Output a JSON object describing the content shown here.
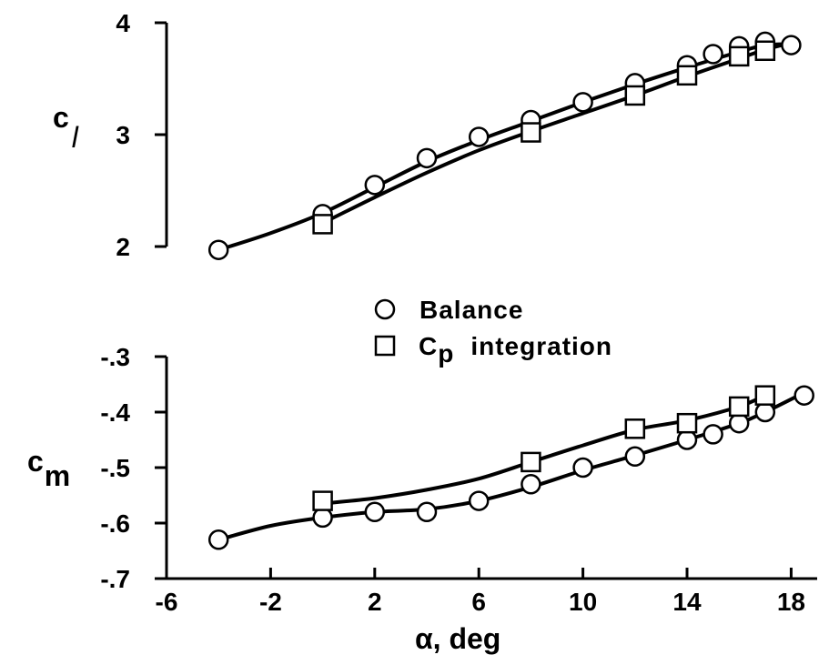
{
  "chart_data": [
    {
      "type": "line",
      "id": "cl",
      "ylabel": "c",
      "ylabel_sub": "l",
      "yticks": [
        "2",
        "3",
        "4"
      ],
      "ylim": [
        2,
        4
      ],
      "xlim": [
        -6,
        19
      ],
      "series": [
        {
          "name": "Balance",
          "marker": "circle",
          "points": [
            [
              -4,
              1.97
            ],
            [
              0,
              2.29
            ],
            [
              2,
              2.55
            ],
            [
              4,
              2.79
            ],
            [
              6,
              2.98
            ],
            [
              8,
              3.13
            ],
            [
              10,
              3.29
            ],
            [
              12,
              3.46
            ],
            [
              14,
              3.62
            ],
            [
              15,
              3.72
            ],
            [
              16,
              3.79
            ],
            [
              17,
              3.83
            ],
            [
              18,
              3.8
            ]
          ],
          "curve": [
            [
              -4,
              1.97
            ],
            [
              -2,
              2.12
            ],
            [
              0,
              2.3
            ],
            [
              2,
              2.53
            ],
            [
              4,
              2.76
            ],
            [
              6,
              2.95
            ],
            [
              8,
              3.12
            ],
            [
              10,
              3.29
            ],
            [
              12,
              3.45
            ],
            [
              14,
              3.6
            ],
            [
              16,
              3.74
            ],
            [
              17,
              3.8
            ],
            [
              18,
              3.81
            ]
          ]
        },
        {
          "name": "C_p integration",
          "marker": "square",
          "points": [
            [
              0,
              2.2
            ],
            [
              8,
              3.02
            ],
            [
              12,
              3.35
            ],
            [
              14,
              3.53
            ],
            [
              16,
              3.7
            ],
            [
              17,
              3.75
            ]
          ],
          "curve": [
            [
              0,
              2.21
            ],
            [
              2,
              2.44
            ],
            [
              4,
              2.66
            ],
            [
              6,
              2.86
            ],
            [
              8,
              3.03
            ],
            [
              10,
              3.19
            ],
            [
              12,
              3.35
            ],
            [
              14,
              3.52
            ],
            [
              16,
              3.68
            ],
            [
              17,
              3.76
            ],
            [
              18,
              3.82
            ]
          ]
        }
      ]
    },
    {
      "type": "line",
      "id": "cm",
      "ylabel": "c",
      "ylabel_sub": "m",
      "yticks": [
        "-.7",
        "-.6",
        "-.5",
        "-.4",
        "-.3"
      ],
      "ylim": [
        -0.7,
        -0.3
      ],
      "xlabel": "α, deg",
      "xticks": [
        "-6",
        "-2",
        "2",
        "6",
        "10",
        "14",
        "18"
      ],
      "xlim": [
        -6,
        19
      ],
      "series": [
        {
          "name": "Balance",
          "marker": "circle",
          "points": [
            [
              -4,
              -0.63
            ],
            [
              0,
              -0.59
            ],
            [
              2,
              -0.58
            ],
            [
              4,
              -0.58
            ],
            [
              6,
              -0.56
            ],
            [
              8,
              -0.53
            ],
            [
              10,
              -0.5
            ],
            [
              12,
              -0.48
            ],
            [
              14,
              -0.45
            ],
            [
              15,
              -0.44
            ],
            [
              16,
              -0.42
            ],
            [
              17,
              -0.4
            ],
            [
              18.5,
              -0.37
            ]
          ],
          "curve": [
            [
              -4,
              -0.63
            ],
            [
              -2,
              -0.605
            ],
            [
              0,
              -0.59
            ],
            [
              2,
              -0.58
            ],
            [
              4,
              -0.575
            ],
            [
              6,
              -0.56
            ],
            [
              8,
              -0.535
            ],
            [
              10,
              -0.505
            ],
            [
              12,
              -0.478
            ],
            [
              14,
              -0.45
            ],
            [
              16,
              -0.42
            ],
            [
              17,
              -0.4
            ],
            [
              18.5,
              -0.365
            ]
          ]
        },
        {
          "name": "C_p integration",
          "marker": "square",
          "points": [
            [
              0,
              -0.56
            ],
            [
              8,
              -0.49
            ],
            [
              12,
              -0.43
            ],
            [
              14,
              -0.42
            ],
            [
              16,
              -0.39
            ],
            [
              17,
              -0.37
            ]
          ],
          "curve": [
            [
              0,
              -0.565
            ],
            [
              2,
              -0.555
            ],
            [
              4,
              -0.54
            ],
            [
              6,
              -0.52
            ],
            [
              8,
              -0.49
            ],
            [
              10,
              -0.46
            ],
            [
              12,
              -0.432
            ],
            [
              14,
              -0.415
            ],
            [
              16,
              -0.39
            ],
            [
              17,
              -0.37
            ]
          ]
        }
      ]
    }
  ],
  "legend": {
    "items": [
      {
        "marker": "circle",
        "label": "Balance"
      },
      {
        "marker": "square",
        "label_main": "C",
        "label_sub": "p",
        "label_rest": "integration"
      }
    ]
  }
}
